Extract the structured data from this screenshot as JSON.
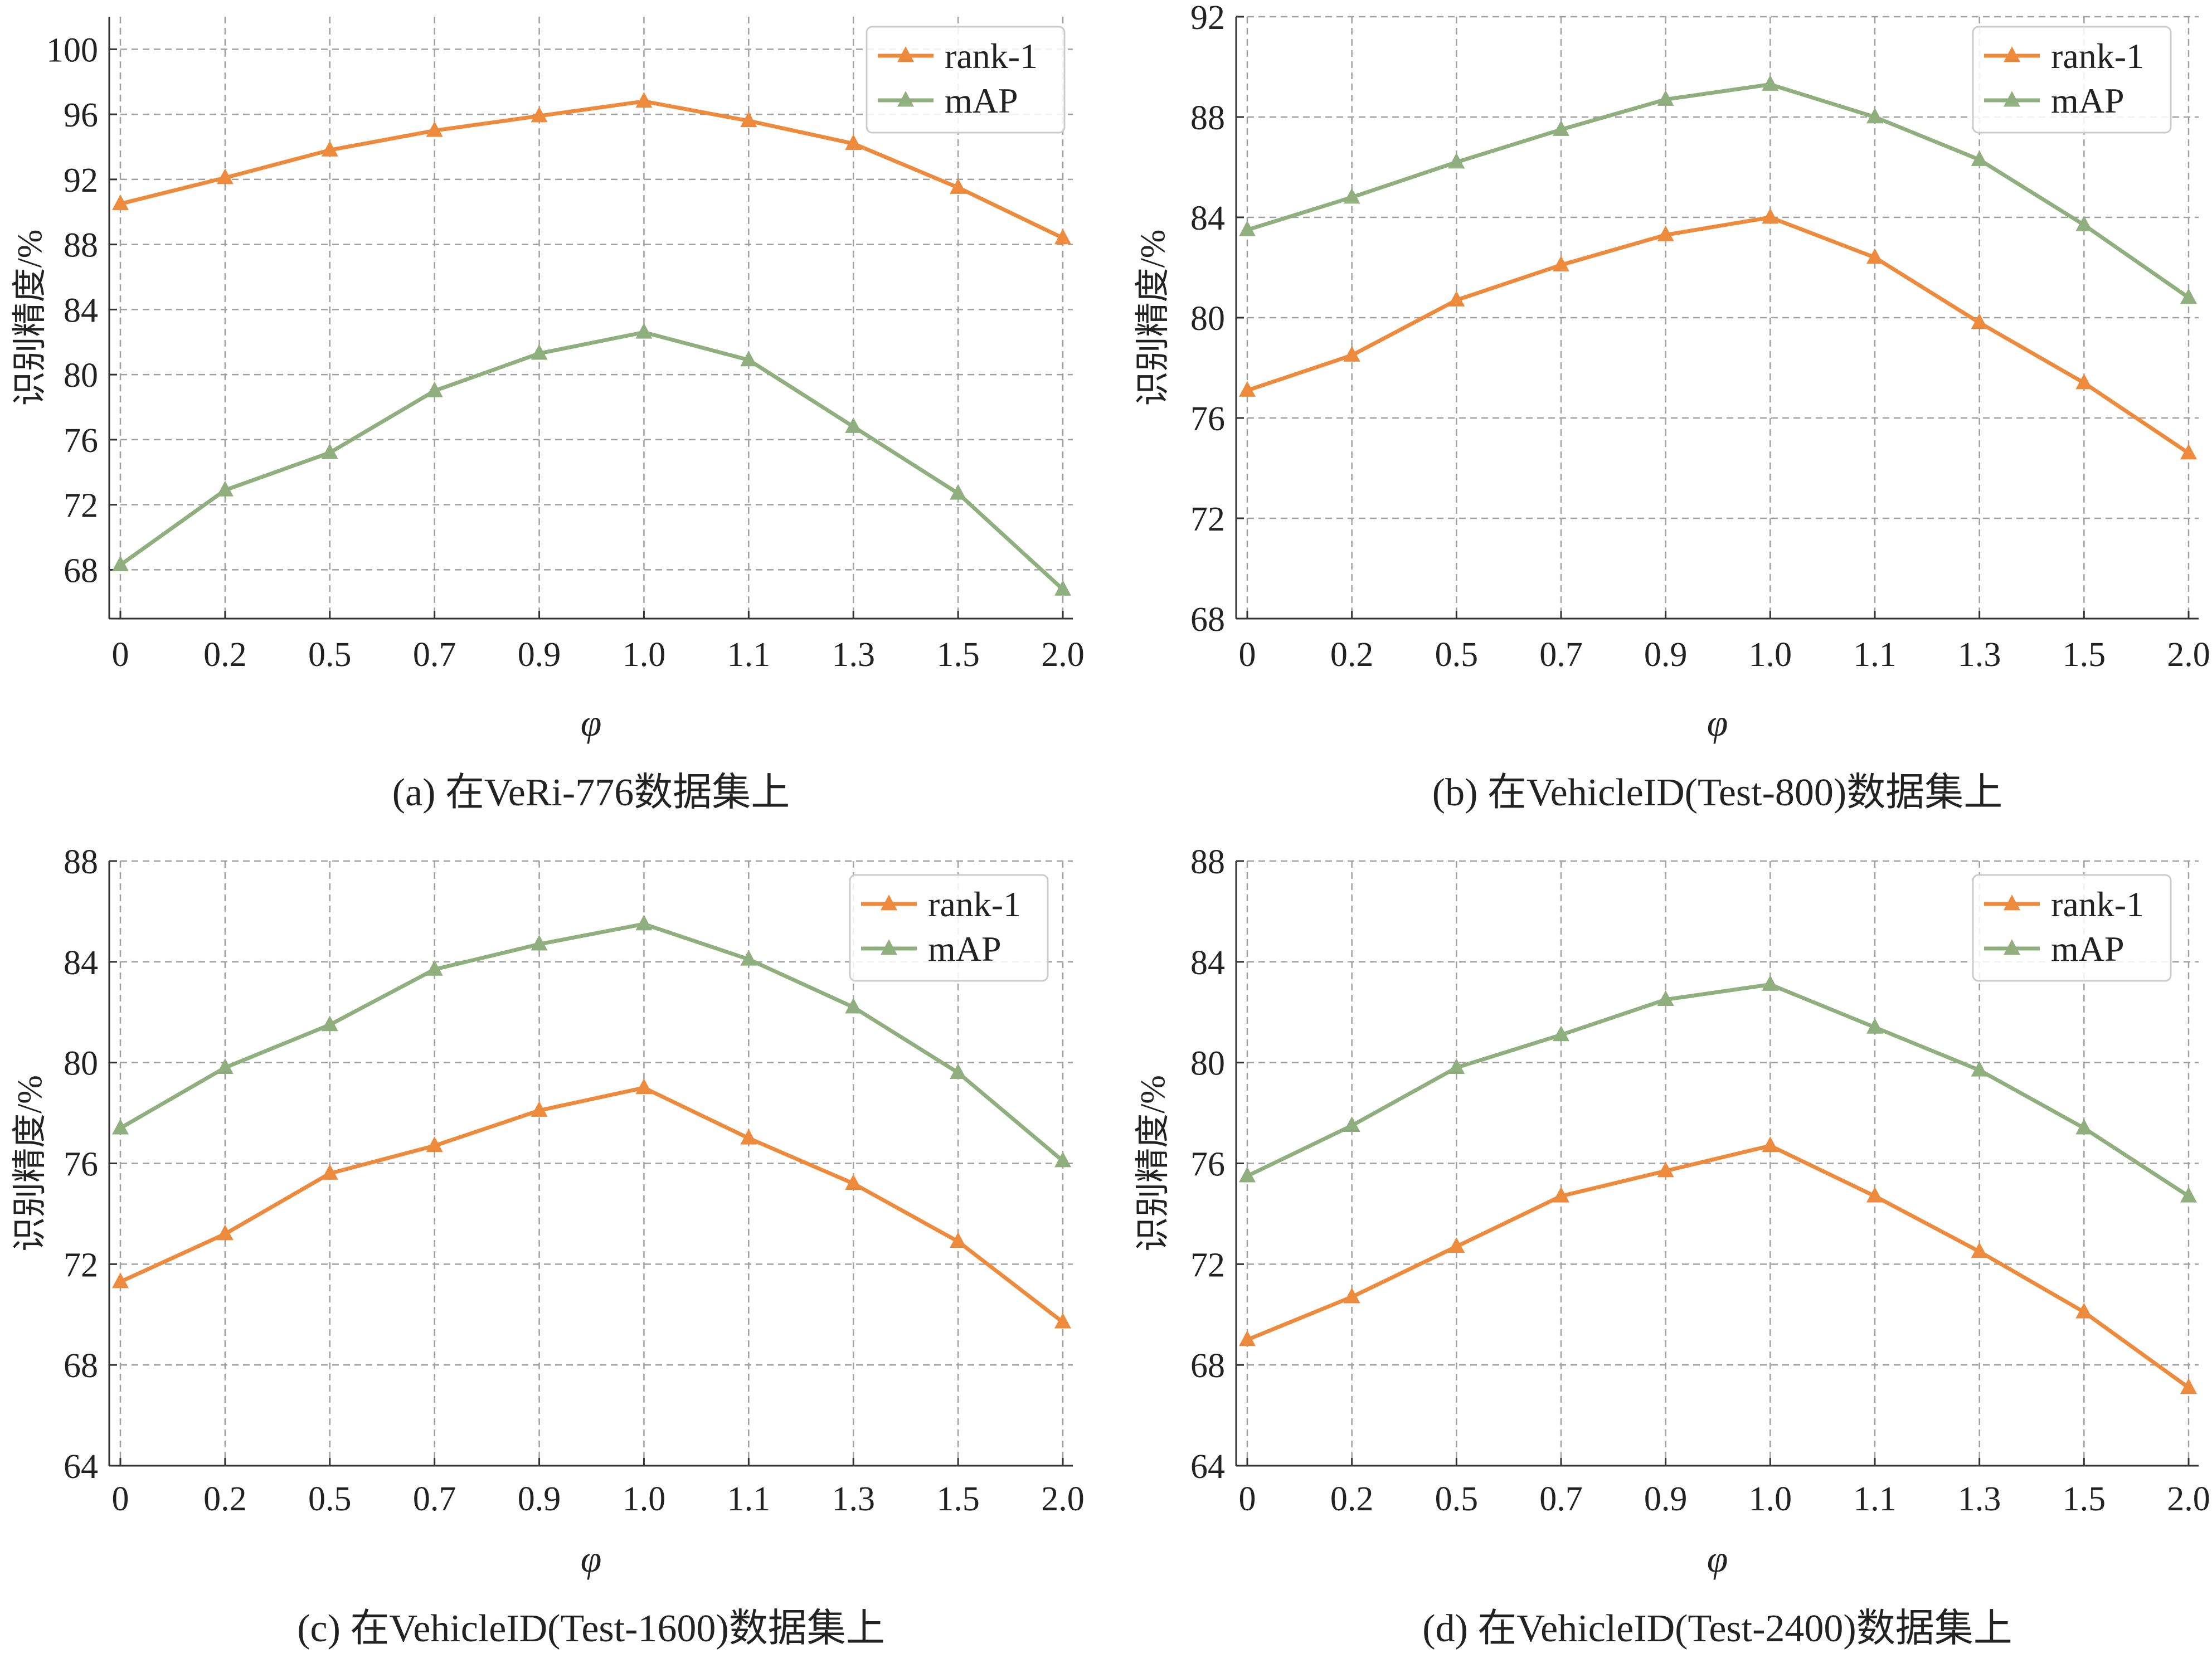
{
  "colors": {
    "rank1": "#ee8a3c",
    "map": "#8faf7e",
    "grid": "#a0a0a0",
    "axis": "#333333",
    "text": "#222222"
  },
  "chart_data": [
    {
      "type": "line",
      "caption": "(a) 在VeRi-776数据集上",
      "xlabel": "φ",
      "ylabel": "识别精度/%",
      "categories": [
        "0",
        "0.2",
        "0.5",
        "0.7",
        "0.9",
        "1.0",
        "1.1",
        "1.3",
        "1.5",
        "2.0"
      ],
      "ylim": [
        65,
        102
      ],
      "yticks": [
        68,
        72,
        76,
        80,
        84,
        88,
        92,
        96,
        100
      ],
      "grid": true,
      "legend_position": "top-right",
      "series": [
        {
          "name": "rank-1",
          "marker": "triangle",
          "values": [
            90.5,
            92.1,
            93.8,
            95.0,
            95.9,
            96.8,
            95.6,
            94.2,
            91.5,
            88.4
          ]
        },
        {
          "name": "mAP",
          "marker": "triangle",
          "values": [
            68.3,
            72.9,
            75.2,
            79.0,
            81.3,
            82.6,
            80.9,
            76.8,
            72.7,
            66.8
          ]
        }
      ]
    },
    {
      "type": "line",
      "caption": "(b) 在VehicleID(Test-800)数据集上",
      "xlabel": "φ",
      "ylabel": "识别精度/%",
      "categories": [
        "0",
        "0.2",
        "0.5",
        "0.7",
        "0.9",
        "1.0",
        "1.1",
        "1.3",
        "1.5",
        "2.0"
      ],
      "ylim": [
        68,
        92
      ],
      "yticks": [
        68,
        72,
        76,
        80,
        84,
        88,
        92
      ],
      "grid": true,
      "legend_position": "top-right",
      "series": [
        {
          "name": "rank-1",
          "marker": "triangle",
          "values": [
            77.1,
            78.5,
            80.7,
            82.1,
            83.3,
            84.0,
            82.4,
            79.8,
            77.4,
            74.6
          ]
        },
        {
          "name": "mAP",
          "marker": "triangle",
          "values": [
            83.5,
            84.8,
            86.2,
            87.5,
            88.7,
            89.3,
            88.0,
            86.3,
            83.7,
            80.8
          ]
        }
      ]
    },
    {
      "type": "line",
      "caption": "(c) 在VehicleID(Test-1600)数据集上",
      "xlabel": "φ",
      "ylabel": "识别精度/%",
      "categories": [
        "0",
        "0.2",
        "0.5",
        "0.7",
        "0.9",
        "1.0",
        "1.1",
        "1.3",
        "1.5",
        "2.0"
      ],
      "ylim": [
        64,
        88
      ],
      "yticks": [
        64,
        68,
        72,
        76,
        80,
        84,
        88
      ],
      "grid": true,
      "legend_position": "top-right",
      "series": [
        {
          "name": "rank-1",
          "marker": "triangle",
          "values": [
            71.3,
            73.2,
            75.6,
            76.7,
            78.1,
            79.0,
            77.0,
            75.2,
            72.9,
            69.7
          ]
        },
        {
          "name": "mAP",
          "marker": "triangle",
          "values": [
            77.4,
            79.8,
            81.5,
            83.7,
            84.7,
            85.5,
            84.1,
            82.2,
            79.6,
            76.1
          ]
        }
      ]
    },
    {
      "type": "line",
      "caption": "(d) 在VehicleID(Test-2400)数据集上",
      "xlabel": "φ",
      "ylabel": "识别精度/%",
      "categories": [
        "0",
        "0.2",
        "0.5",
        "0.7",
        "0.9",
        "1.0",
        "1.1",
        "1.3",
        "1.5",
        "2.0"
      ],
      "ylim": [
        64,
        88
      ],
      "yticks": [
        64,
        68,
        72,
        76,
        80,
        84,
        88
      ],
      "grid": true,
      "legend_position": "top-right",
      "series": [
        {
          "name": "rank-1",
          "marker": "triangle",
          "values": [
            69.0,
            70.7,
            72.7,
            74.7,
            75.7,
            76.7,
            74.7,
            72.5,
            70.1,
            67.1
          ]
        },
        {
          "name": "mAP",
          "marker": "triangle",
          "values": [
            75.5,
            77.5,
            79.8,
            81.1,
            82.5,
            83.1,
            81.4,
            79.7,
            77.4,
            74.7
          ]
        }
      ]
    }
  ]
}
